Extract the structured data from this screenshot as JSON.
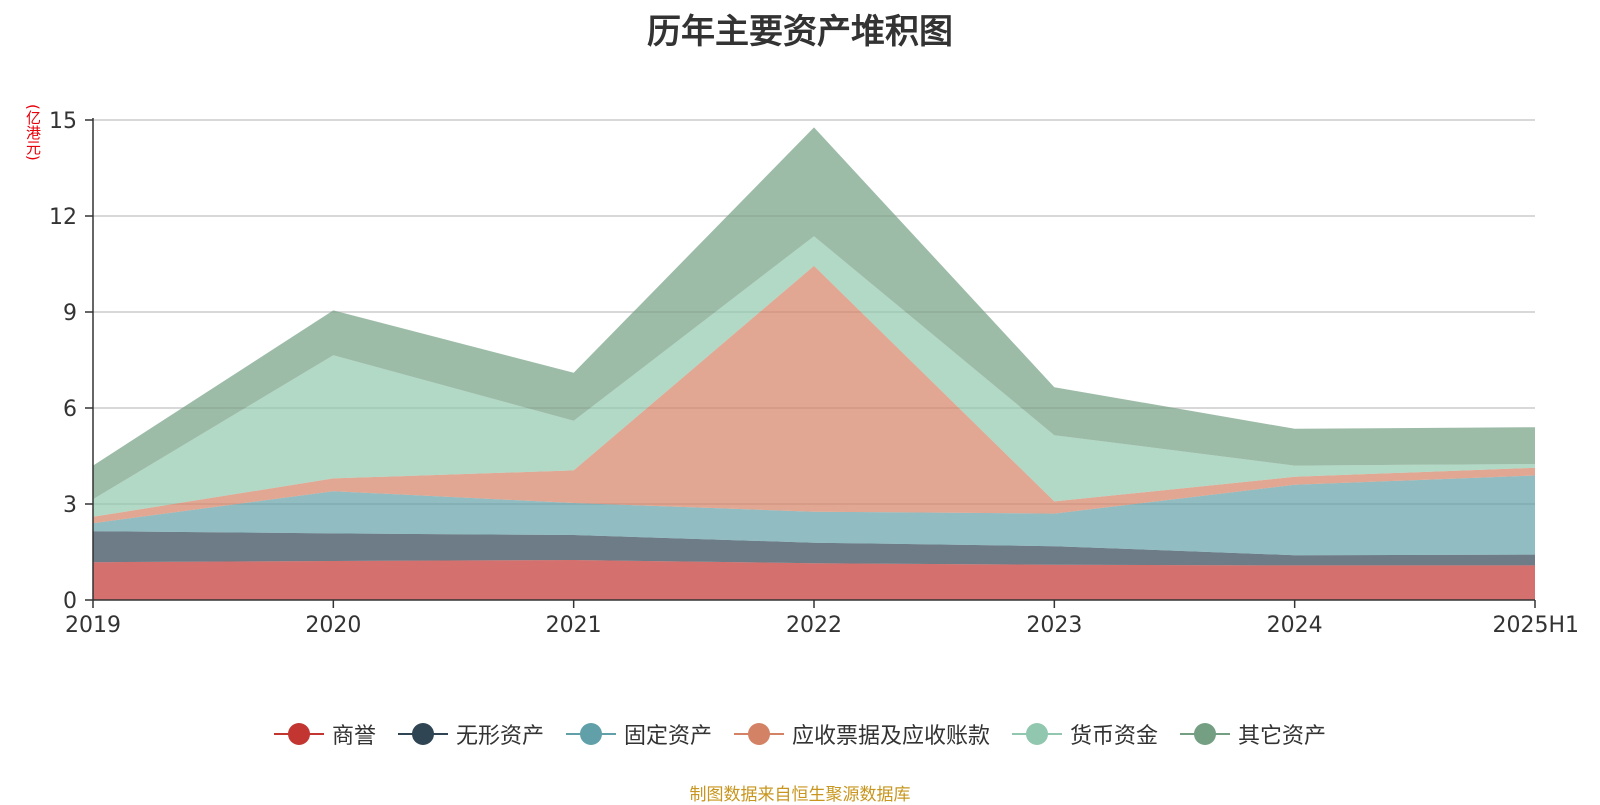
{
  "chart_data": {
    "type": "area",
    "stacked": true,
    "title": "历年主要资产堆积图",
    "unit": "(亿港元)",
    "categories": [
      "2019",
      "2020",
      "2021",
      "2022",
      "2023",
      "2024",
      "2025H1"
    ],
    "ylim": [
      0,
      15
    ],
    "yticks": [
      "0",
      "3",
      "6",
      "9",
      "12",
      "15"
    ],
    "grid": true,
    "legend_position": "bottom",
    "series": [
      {
        "name": "商誉",
        "color": "#c23531",
        "values": [
          1.18,
          1.22,
          1.25,
          1.15,
          1.1,
          1.08,
          1.08
        ]
      },
      {
        "name": "无形资产",
        "color": "#2f4554",
        "values": [
          0.97,
          0.86,
          0.78,
          0.64,
          0.58,
          0.32,
          0.34
        ]
      },
      {
        "name": "固定资产",
        "color": "#61a0a8",
        "values": [
          0.25,
          1.32,
          1.0,
          0.97,
          1.02,
          2.2,
          2.47
        ]
      },
      {
        "name": "应收票据及应收账款",
        "color": "#d48265",
        "values": [
          0.2,
          0.4,
          1.02,
          7.68,
          0.38,
          0.25,
          0.24
        ]
      },
      {
        "name": "货币资金",
        "color": "#91c7ae",
        "values": [
          0.55,
          3.85,
          1.55,
          0.93,
          2.07,
          0.35,
          0.12
        ]
      },
      {
        "name": "其它资产",
        "color": "#749f83",
        "values": [
          1.05,
          1.4,
          1.5,
          3.4,
          1.5,
          1.15,
          1.15
        ]
      }
    ]
  },
  "legend": {
    "items": [
      "商誉",
      "无形资产",
      "固定资产",
      "应收票据及应收账款",
      "货币资金",
      "其它资产"
    ]
  },
  "source_note": "制图数据来自恒生聚源数据库"
}
